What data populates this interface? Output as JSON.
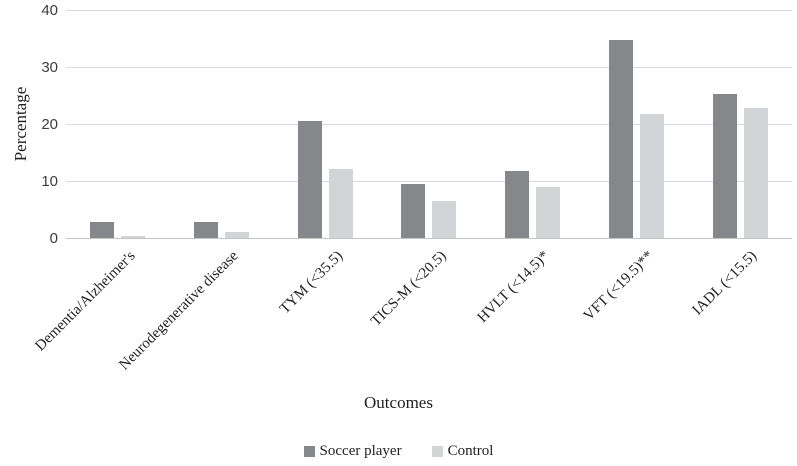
{
  "chart_data": {
    "type": "bar",
    "title": "",
    "xlabel": "Outcomes",
    "ylabel": "Percentage",
    "ylim": [
      0,
      40
    ],
    "yticks": [
      0,
      10,
      20,
      30,
      40
    ],
    "grid": true,
    "legend_position": "bottom",
    "categories": [
      "Dementia/Alzheimer's",
      "Neurodegenerative disease",
      "TYM (<35.5)",
      "TICS-M (<20.5)",
      "HVLT (<14.5)*",
      "VFT (<19.5)**",
      "IADL (<15.5)"
    ],
    "series": [
      {
        "name": "Soccer player",
        "color": "#85878a",
        "values": [
          2.8,
          2.8,
          20.5,
          9.5,
          11.8,
          34.8,
          25.3
        ]
      },
      {
        "name": "Control",
        "color": "#d2d4d6",
        "values": [
          0.3,
          1.0,
          12.1,
          6.5,
          9.0,
          21.8,
          22.8
        ]
      }
    ],
    "colors": {
      "gridline": "#d9d9d9",
      "axis_line": "#c3c4c6",
      "tick_text": "#3c3c3c",
      "label_text": "#1f1f1f"
    }
  }
}
